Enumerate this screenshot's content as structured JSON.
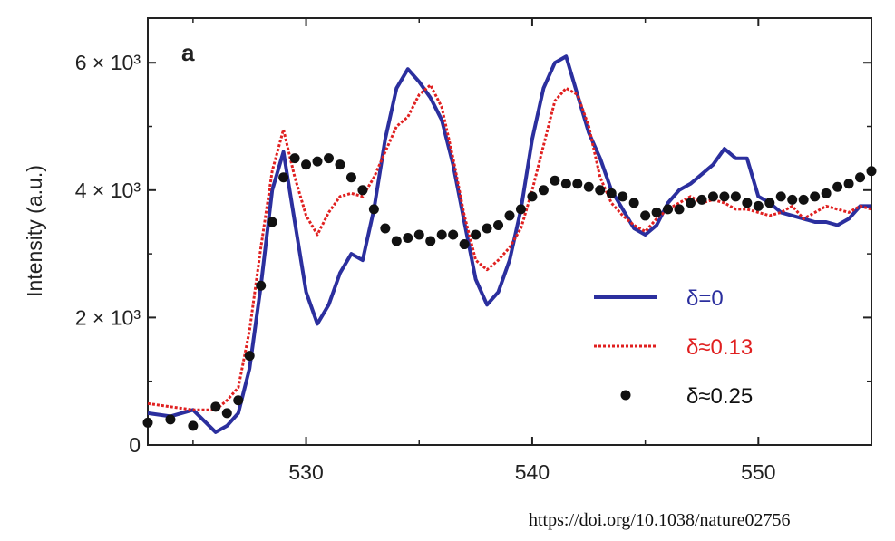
{
  "chart_data": {
    "type": "line",
    "panel_label": "a",
    "ylabel": "Intensity (a.u.)",
    "xlabel": "",
    "xlim": [
      523,
      555
    ],
    "ylim": [
      0,
      6700
    ],
    "x_ticks": [
      530,
      540,
      550
    ],
    "x_tick_labels": [
      "530",
      "540",
      "550"
    ],
    "y_ticks": [
      0,
      2000,
      4000,
      6000
    ],
    "y_tick_labels": [
      "0",
      "2 × 10³",
      "4 × 10³",
      "6 × 10³"
    ],
    "grid": false,
    "legend_position": "bottom-right",
    "series": [
      {
        "name": "δ=0",
        "style": "solid",
        "color": "#2b2f9e",
        "x": [
          523,
          524,
          525,
          526,
          526.5,
          527,
          527.5,
          528,
          528.5,
          529,
          529.5,
          530,
          530.5,
          531,
          531.5,
          532,
          532.5,
          533,
          533.5,
          534,
          534.5,
          535,
          535.5,
          536,
          536.5,
          537,
          537.5,
          538,
          538.5,
          539,
          539.5,
          540,
          540.5,
          541,
          541.5,
          542,
          542.5,
          543,
          543.5,
          544,
          544.5,
          545,
          545.5,
          546,
          546.5,
          547,
          547.5,
          548,
          548.5,
          549,
          549.5,
          550,
          550.5,
          551,
          551.5,
          552,
          552.5,
          553,
          553.5,
          554,
          554.5,
          555
        ],
        "values": [
          500,
          450,
          550,
          200,
          300,
          500,
          1200,
          2500,
          4000,
          4600,
          3500,
          2400,
          1900,
          2200,
          2700,
          3000,
          2900,
          3700,
          4800,
          5600,
          5900,
          5700,
          5450,
          5100,
          4400,
          3500,
          2600,
          2200,
          2400,
          2900,
          3700,
          4800,
          5600,
          6000,
          6100,
          5500,
          4900,
          4500,
          4000,
          3700,
          3400,
          3300,
          3450,
          3800,
          4000,
          4100,
          4250,
          4400,
          4650,
          4500,
          4500,
          3900,
          3800,
          3650,
          3600,
          3550,
          3500,
          3500,
          3450,
          3550,
          3750,
          3750
        ]
      },
      {
        "name": "δ≈0.13",
        "style": "dotted",
        "color": "#e02020",
        "x": [
          523,
          524,
          525,
          526,
          526.5,
          527,
          527.5,
          528,
          528.5,
          529,
          529.5,
          530,
          530.5,
          531,
          531.5,
          532,
          532.5,
          533,
          533.5,
          534,
          534.5,
          535,
          535.5,
          536,
          536.5,
          537,
          537.5,
          538,
          538.5,
          539,
          539.5,
          540,
          540.5,
          541,
          541.5,
          542,
          542.5,
          543,
          543.5,
          544,
          544.5,
          545,
          545.5,
          546,
          546.5,
          547,
          547.5,
          548,
          548.5,
          549,
          549.5,
          550,
          550.5,
          551,
          551.5,
          552,
          552.5,
          553,
          553.5,
          554,
          554.5,
          555
        ],
        "values": [
          650,
          600,
          550,
          550,
          700,
          900,
          1800,
          3100,
          4300,
          4950,
          4200,
          3600,
          3300,
          3650,
          3900,
          3950,
          3900,
          4200,
          4600,
          5000,
          5150,
          5500,
          5650,
          5300,
          4500,
          3600,
          2900,
          2750,
          2900,
          3100,
          3400,
          4000,
          4700,
          5400,
          5600,
          5500,
          5000,
          4200,
          3800,
          3600,
          3450,
          3350,
          3550,
          3700,
          3800,
          3900,
          3800,
          3850,
          3800,
          3700,
          3700,
          3650,
          3600,
          3650,
          3750,
          3550,
          3650,
          3750,
          3700,
          3650,
          3750,
          3700
        ]
      },
      {
        "name": "δ≈0.25",
        "style": "points",
        "color": "#111111",
        "x": [
          523,
          524,
          525,
          526,
          526.5,
          527,
          527.5,
          528,
          528.5,
          529,
          529.5,
          530,
          530.5,
          531,
          531.5,
          532,
          532.5,
          533,
          533.5,
          534,
          534.5,
          535,
          535.5,
          536,
          536.5,
          537,
          537.5,
          538,
          538.5,
          539,
          539.5,
          540,
          540.5,
          541,
          541.5,
          542,
          542.5,
          543,
          543.5,
          544,
          544.5,
          545,
          545.5,
          546,
          546.5,
          547,
          547.5,
          548,
          548.5,
          549,
          549.5,
          550,
          550.5,
          551,
          551.5,
          552,
          552.5,
          553,
          553.5,
          554,
          554.5,
          555
        ],
        "values": [
          350,
          400,
          300,
          600,
          500,
          700,
          1400,
          2500,
          3500,
          4200,
          4500,
          4400,
          4450,
          4500,
          4400,
          4200,
          4000,
          3700,
          3400,
          3200,
          3250,
          3300,
          3200,
          3300,
          3300,
          3150,
          3300,
          3400,
          3450,
          3600,
          3700,
          3900,
          4000,
          4150,
          4100,
          4100,
          4050,
          4000,
          3950,
          3900,
          3800,
          3600,
          3650,
          3700,
          3700,
          3800,
          3850,
          3900,
          3900,
          3900,
          3800,
          3750,
          3800,
          3900,
          3850,
          3850,
          3900,
          3950,
          4050,
          4100,
          4200,
          4300
        ]
      }
    ]
  },
  "footer": {
    "doi": "https://doi.org/10.1038/nature02756"
  }
}
